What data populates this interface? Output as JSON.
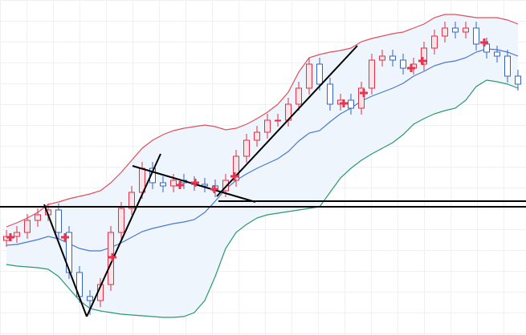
{
  "chart_data": {
    "type": "candlestick",
    "categories": [
      null,
      null,
      null,
      null,
      null,
      null,
      null,
      null,
      null,
      null,
      null,
      null,
      null,
      null,
      null,
      null,
      null,
      null,
      null,
      null,
      null,
      null,
      null,
      null,
      null,
      null,
      null,
      null,
      null,
      null,
      null,
      null,
      null,
      null,
      null,
      null,
      null,
      null,
      null,
      null,
      null,
      null,
      null,
      null,
      null,
      null,
      null,
      null,
      null,
      null
    ],
    "open": [
      118,
      123,
      128,
      143,
      150,
      156,
      128,
      78,
      48,
      43,
      63,
      128,
      158,
      178,
      208,
      190,
      186,
      193,
      190,
      188,
      186,
      180,
      193,
      223,
      243,
      253,
      268,
      268,
      288,
      308,
      338,
      313,
      288,
      293,
      283,
      308,
      343,
      348,
      343,
      333,
      338,
      358,
      373,
      383,
      378,
      383,
      363,
      353,
      348,
      323
    ],
    "high": [
      131,
      136,
      151,
      158,
      164,
      164,
      136,
      86,
      56,
      71,
      136,
      166,
      186,
      216,
      216,
      198,
      201,
      201,
      198,
      196,
      194,
      201,
      231,
      251,
      261,
      276,
      276,
      296,
      316,
      346,
      346,
      321,
      301,
      301,
      316,
      351,
      356,
      356,
      351,
      346,
      366,
      381,
      391,
      391,
      391,
      391,
      371,
      361,
      356,
      331
    ],
    "low": [
      110,
      115,
      120,
      135,
      142,
      120,
      70,
      40,
      25,
      35,
      55,
      120,
      150,
      170,
      182,
      178,
      178,
      182,
      180,
      178,
      172,
      172,
      185,
      215,
      235,
      245,
      260,
      260,
      280,
      300,
      305,
      280,
      280,
      275,
      275,
      300,
      335,
      335,
      325,
      325,
      330,
      350,
      365,
      370,
      370,
      355,
      345,
      340,
      315,
      305
    ],
    "close": [
      123,
      128,
      143,
      150,
      156,
      128,
      78,
      48,
      43,
      63,
      128,
      158,
      178,
      208,
      190,
      186,
      193,
      190,
      188,
      186,
      180,
      193,
      223,
      243,
      253,
      268,
      268,
      288,
      308,
      338,
      313,
      288,
      293,
      283,
      308,
      343,
      348,
      343,
      333,
      338,
      358,
      373,
      383,
      378,
      383,
      363,
      353,
      348,
      323,
      313
    ],
    "up_color": "#e0304a",
    "down_color": "#3563c4",
    "lines": [
      {
        "color": "#e0505a",
        "values": [
          135,
          140,
          146,
          153,
          163,
          166,
          170,
          173,
          176,
          180,
          190,
          203,
          218,
          233,
          243,
          250,
          255,
          258,
          260,
          262,
          260,
          256,
          258,
          263,
          270,
          278,
          288,
          303,
          328,
          346,
          350,
          353,
          355,
          358,
          366,
          370,
          373,
          376,
          378,
          383,
          388,
          396,
          400,
          400,
          398,
          396,
          396,
          396,
          393,
          388
        ]
      },
      {
        "color": "#4a78d0",
        "values": [
          112,
          113,
          116,
          119,
          123,
          120,
          114,
          108,
          105,
          105,
          109,
          115,
          122,
          129,
          133,
          136,
          139,
          141,
          144,
          153,
          167,
          182,
          193,
          201,
          208,
          214,
          220,
          229,
          242,
          252,
          255,
          266,
          276,
          283,
          292,
          298,
          303,
          308,
          314,
          323,
          329,
          336,
          340,
          342,
          346,
          353,
          357,
          356,
          353,
          348
        ]
      },
      {
        "color": "#2a9a6a",
        "values": [
          88,
          86,
          85,
          84,
          82,
          73,
          58,
          43,
          33,
          30,
          28,
          26,
          25,
          24,
          23,
          22,
          22,
          23,
          28,
          43,
          73,
          108,
          128,
          138,
          146,
          150,
          152,
          154,
          156,
          158,
          160,
          178,
          196,
          208,
          218,
          226,
          233,
          240,
          250,
          263,
          270,
          276,
          280,
          283,
          293,
          310,
          318,
          316,
          313,
          308
        ]
      }
    ],
    "band_fill": "#eef5fc",
    "ylim": [
      0,
      418
    ]
  }
}
